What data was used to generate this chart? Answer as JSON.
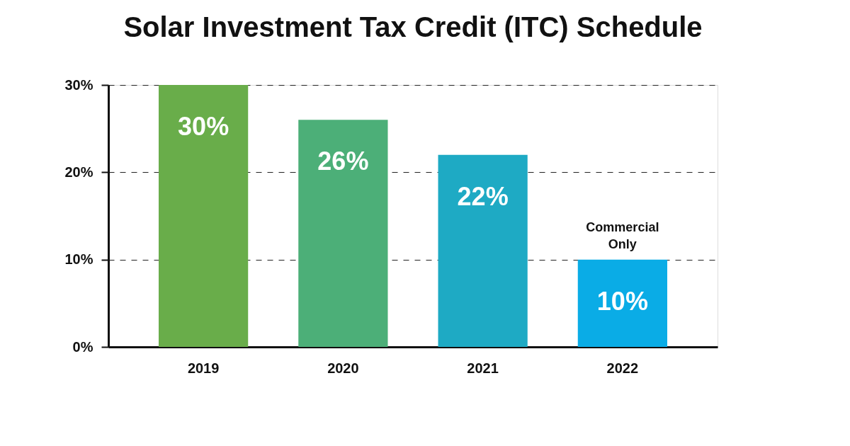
{
  "chart_data": {
    "type": "bar",
    "title": "Solar Investment Tax Credit (ITC) Schedule",
    "categories": [
      "2019",
      "2020",
      "2021",
      "2022"
    ],
    "values": [
      30,
      26,
      22,
      10
    ],
    "colors": [
      "#69ad4a",
      "#4caf78",
      "#1eaac4",
      "#0aace6"
    ],
    "value_labels": [
      "30%",
      "26%",
      "22%",
      "10%"
    ],
    "ylim": [
      0,
      30
    ],
    "yticks": [
      {
        "value": 0,
        "label": "0%"
      },
      {
        "value": 10,
        "label": "10%"
      },
      {
        "value": 20,
        "label": "20%"
      },
      {
        "value": 30,
        "label": "30%"
      }
    ],
    "grid": "y",
    "annotations": [
      {
        "text": "Commercial Only",
        "x": "2022",
        "y": 10
      }
    ]
  }
}
